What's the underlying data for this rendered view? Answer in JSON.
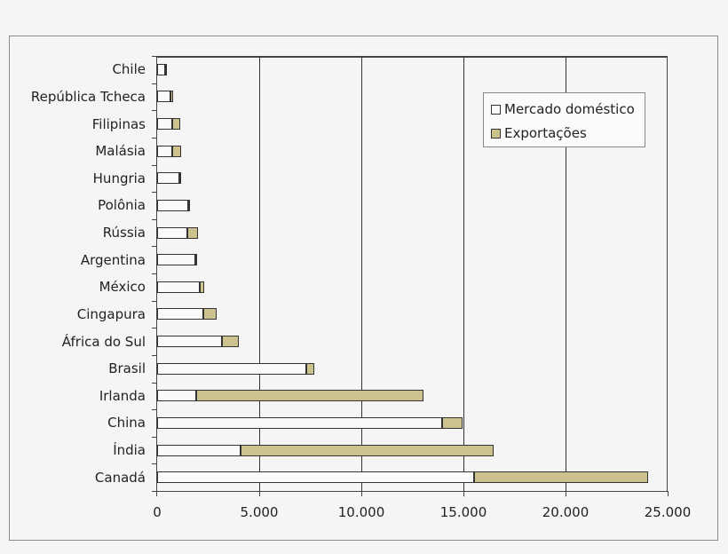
{
  "chart_data": {
    "type": "bar",
    "orientation": "horizontal",
    "stacked": true,
    "title": "",
    "xlabel": "",
    "ylabel": "",
    "xlim": [
      0,
      25000
    ],
    "x_ticks": [
      "0",
      "5.000",
      "10.000",
      "15.000",
      "20.000",
      "25.000"
    ],
    "x_tick_values": [
      0,
      5000,
      10000,
      15000,
      20000,
      25000
    ],
    "grid": "vertical",
    "legend_position": "upper right (inside)",
    "categories": [
      "Chile",
      "República Tcheca",
      "Filipinas",
      "Malásia",
      "Hungria",
      "Polônia",
      "Rússia",
      "Argentina",
      "México",
      "Cingapura",
      "África do Sul",
      "Brasil",
      "Irlanda",
      "China",
      "Índia",
      "Canadá"
    ],
    "series": [
      {
        "name": "Mercado doméstico",
        "color": "#fafafa",
        "values": [
          390,
          650,
          740,
          750,
          1100,
          1520,
          1480,
          1880,
          2070,
          2260,
          3180,
          7310,
          1900,
          13940,
          4080,
          15540
        ]
      },
      {
        "name": "Exportações",
        "color": "#cbc28e",
        "values": [
          90,
          150,
          380,
          410,
          90,
          100,
          500,
          70,
          220,
          650,
          800,
          380,
          11130,
          1000,
          12420,
          8510
        ]
      }
    ]
  },
  "legend": {
    "items": [
      {
        "label": "Mercado doméstico",
        "color": "#fafafa"
      },
      {
        "label": "Exportações",
        "color": "#cbc28e"
      }
    ]
  }
}
